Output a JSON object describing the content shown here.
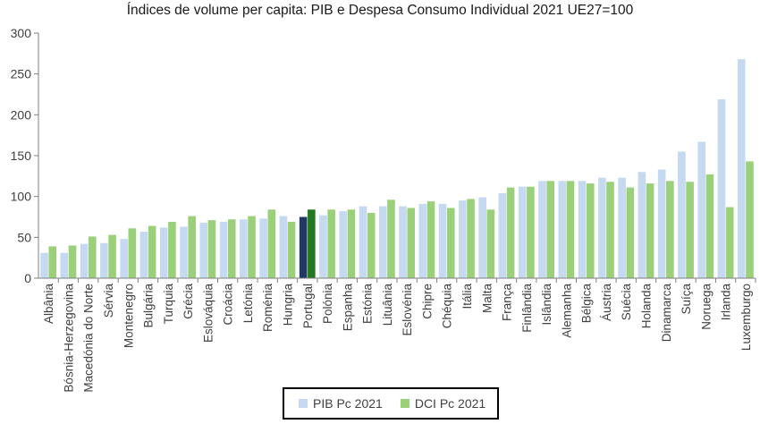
{
  "chart_data": {
    "type": "bar",
    "title": "Índices de volume per capita: PIB e Despesa Consumo Individual 2021 UE27=100",
    "xlabel": "",
    "ylabel": "",
    "ylim": [
      0,
      300
    ],
    "yticks": [
      0,
      50,
      100,
      150,
      200,
      250,
      300
    ],
    "grid": false,
    "legend_position": "bottom",
    "categories": [
      "Albânia",
      "Bósnia-Herzegovina",
      "Macedónia do Norte",
      "Sérvia",
      "Montenegro",
      "Bulgária",
      "Turquia",
      "Grécia",
      "Eslováquia",
      "Croácia",
      "Letónia",
      "Roménia",
      "Hungria",
      "Portugal",
      "Polónia",
      "Espanha",
      "Estónia",
      "Lituânia",
      "Eslovénia",
      "Chipre",
      "Chéquia",
      "Itália",
      "Malta",
      "França",
      "Finlândia",
      "Islândia",
      "Alemanha",
      "Bélgica",
      "Áustria",
      "Suécia",
      "Holanda",
      "Dinamarca",
      "Suíça",
      "Noruega",
      "Irlanda",
      "Luxemburgo"
    ],
    "highlight_category": "Portugal",
    "series": [
      {
        "name": "PIB Pc 2021",
        "color": "#c5d9f1",
        "highlight_color": "#1f3864",
        "values": [
          31,
          31,
          42,
          43,
          48,
          57,
          62,
          63,
          68,
          69,
          72,
          73,
          76,
          75,
          77,
          82,
          88,
          88,
          88,
          91,
          91,
          95,
          99,
          104,
          112,
          119,
          119,
          119,
          123,
          123,
          130,
          133,
          155,
          167,
          219,
          268
        ]
      },
      {
        "name": "DCI Pc 2021",
        "color": "#9bd07a",
        "highlight_color": "#217a22",
        "values": [
          39,
          40,
          51,
          53,
          61,
          64,
          69,
          76,
          71,
          72,
          76,
          84,
          69,
          84,
          84,
          84,
          80,
          96,
          86,
          94,
          86,
          97,
          84,
          111,
          112,
          119,
          119,
          116,
          118,
          111,
          116,
          119,
          118,
          127,
          87,
          143
        ]
      }
    ]
  }
}
